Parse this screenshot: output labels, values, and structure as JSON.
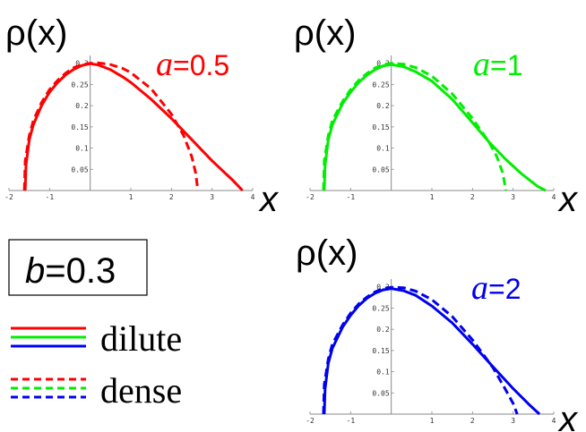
{
  "figure": {
    "b_label": "b",
    "b_value": "=0.3",
    "legend": [
      {
        "label": "dilute",
        "style": "solid"
      },
      {
        "label": "dense",
        "style": "dashed"
      }
    ],
    "legend_colors": [
      "#ff0000",
      "#00ee00",
      "#0000ff"
    ]
  },
  "chart_data": [
    {
      "type": "line",
      "ylabel": "ρ(x)",
      "xlabel": "x",
      "param_name": "a",
      "param_value": "=0.5",
      "color": "#ff0000",
      "xlim": [
        -2,
        4
      ],
      "ylim": [
        0,
        0.31
      ],
      "x_ticks": [
        -2,
        -1,
        1,
        2,
        3,
        4
      ],
      "x_tick_labels": [
        "-2",
        "-1",
        "1",
        "2",
        "3",
        "4"
      ],
      "y_ticks": [
        0.05,
        0.1,
        0.15,
        0.2,
        0.25,
        0.3
      ],
      "y_tick_labels": [
        "0.05",
        "0.1",
        "0.15",
        "0.2",
        "0.25",
        "0.3"
      ],
      "series": [
        {
          "style": "solid",
          "x": [
            -1.6,
            -1.58,
            -1.5,
            -1.4,
            -1.2,
            -1.0,
            -0.8,
            -0.6,
            -0.4,
            -0.2,
            0.0,
            0.2,
            0.5,
            0.8,
            1.0,
            1.5,
            2.0,
            2.2,
            2.5,
            3.0,
            3.5,
            3.75
          ],
          "y": [
            0.0,
            0.06,
            0.12,
            0.155,
            0.2,
            0.232,
            0.255,
            0.273,
            0.286,
            0.295,
            0.299,
            0.296,
            0.285,
            0.268,
            0.255,
            0.215,
            0.17,
            0.15,
            0.12,
            0.07,
            0.025,
            0.0
          ]
        },
        {
          "style": "dashed",
          "x": [
            -1.62,
            -1.6,
            -1.5,
            -1.4,
            -1.2,
            -1.0,
            -0.8,
            -0.6,
            -0.4,
            -0.2,
            0.0,
            0.2,
            0.5,
            0.8,
            1.0,
            1.5,
            2.0,
            2.3,
            2.5,
            2.6,
            2.65
          ],
          "y": [
            0.0,
            0.07,
            0.13,
            0.165,
            0.207,
            0.238,
            0.26,
            0.277,
            0.29,
            0.297,
            0.3,
            0.301,
            0.297,
            0.288,
            0.278,
            0.24,
            0.18,
            0.13,
            0.08,
            0.04,
            0.0
          ]
        }
      ]
    },
    {
      "type": "line",
      "ylabel": "ρ(x)",
      "xlabel": "x",
      "param_name": "a",
      "param_value": "=1",
      "color": "#00ee00",
      "xlim": [
        -2,
        4
      ],
      "ylim": [
        0,
        0.31
      ],
      "x_ticks": [
        -2,
        -1,
        1,
        2,
        3,
        4
      ],
      "x_tick_labels": [
        "-2",
        "-1",
        "1",
        "2",
        "3",
        "4"
      ],
      "y_ticks": [
        0.05,
        0.1,
        0.15,
        0.2,
        0.25,
        0.3
      ],
      "y_tick_labels": [
        "0.05",
        "0.1",
        "0.15",
        "0.2",
        "0.25",
        "0.3"
      ],
      "series": [
        {
          "style": "solid",
          "x": [
            -1.65,
            -1.63,
            -1.55,
            -1.45,
            -1.2,
            -1.0,
            -0.8,
            -0.6,
            -0.4,
            -0.2,
            0.0,
            0.3,
            0.6,
            1.0,
            1.5,
            2.0,
            2.4,
            2.8,
            3.2,
            3.6,
            3.8
          ],
          "y": [
            0.0,
            0.06,
            0.12,
            0.155,
            0.205,
            0.232,
            0.255,
            0.272,
            0.285,
            0.294,
            0.297,
            0.292,
            0.28,
            0.258,
            0.215,
            0.16,
            0.115,
            0.075,
            0.04,
            0.01,
            0.0
          ]
        },
        {
          "style": "dashed",
          "x": [
            -1.67,
            -1.65,
            -1.55,
            -1.45,
            -1.2,
            -1.0,
            -0.8,
            -0.6,
            -0.4,
            -0.2,
            0.0,
            0.3,
            0.6,
            1.0,
            1.5,
            2.0,
            2.4,
            2.6,
            2.75,
            2.82
          ],
          "y": [
            0.0,
            0.07,
            0.13,
            0.165,
            0.21,
            0.238,
            0.26,
            0.276,
            0.289,
            0.297,
            0.3,
            0.298,
            0.29,
            0.27,
            0.228,
            0.17,
            0.115,
            0.08,
            0.04,
            0.0
          ]
        }
      ]
    },
    {
      "type": "line",
      "ylabel": "ρ(x)",
      "xlabel": "x",
      "param_name": "a",
      "param_value": "=2",
      "color": "#0000ee",
      "xlim": [
        -2,
        4
      ],
      "ylim": [
        0,
        0.31
      ],
      "x_ticks": [
        -2,
        -1,
        1,
        2,
        3,
        4
      ],
      "x_tick_labels": [
        "-2",
        "-1",
        "1",
        "2",
        "3",
        "4"
      ],
      "y_ticks": [
        0.05,
        0.1,
        0.15,
        0.2,
        0.25,
        0.3
      ],
      "y_tick_labels": [
        "0.05",
        "0.1",
        "0.15",
        "0.2",
        "0.25",
        "0.3"
      ],
      "series": [
        {
          "style": "solid",
          "x": [
            -1.65,
            -1.63,
            -1.55,
            -1.45,
            -1.2,
            -1.0,
            -0.8,
            -0.6,
            -0.4,
            -0.2,
            0.0,
            0.3,
            0.6,
            1.0,
            1.5,
            2.0,
            2.5,
            3.0,
            3.4,
            3.65
          ],
          "y": [
            0.0,
            0.06,
            0.12,
            0.155,
            0.205,
            0.233,
            0.256,
            0.273,
            0.285,
            0.293,
            0.296,
            0.291,
            0.28,
            0.255,
            0.215,
            0.165,
            0.112,
            0.06,
            0.022,
            0.0
          ]
        },
        {
          "style": "dashed",
          "x": [
            -1.67,
            -1.65,
            -1.55,
            -1.45,
            -1.2,
            -1.0,
            -0.8,
            -0.6,
            -0.4,
            -0.2,
            0.0,
            0.3,
            0.6,
            1.0,
            1.5,
            2.0,
            2.5,
            2.8,
            3.0,
            3.1
          ],
          "y": [
            0.0,
            0.07,
            0.13,
            0.165,
            0.21,
            0.238,
            0.26,
            0.276,
            0.288,
            0.296,
            0.299,
            0.298,
            0.29,
            0.27,
            0.23,
            0.175,
            0.11,
            0.06,
            0.025,
            0.0
          ]
        }
      ]
    }
  ]
}
